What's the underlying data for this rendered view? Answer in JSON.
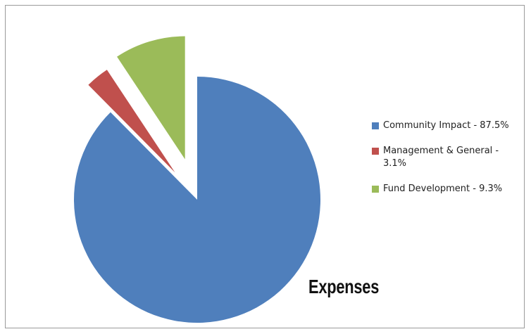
{
  "chart_data": {
    "type": "pie",
    "title": "",
    "annotation": "Expenses",
    "exploded": true,
    "legend_position": "right",
    "slices": [
      {
        "label": "Community Impact - 87.5%",
        "value": 87.5,
        "color": "#4f7fbc"
      },
      {
        "label": "Management & General - 3.1%",
        "value": 3.1,
        "color": "#c0504d"
      },
      {
        "label": "Fund Development - 9.3%",
        "value": 9.3,
        "color": "#9bbb59"
      }
    ]
  }
}
